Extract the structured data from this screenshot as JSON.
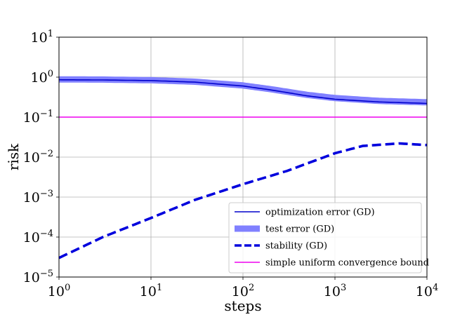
{
  "chart_data": {
    "type": "line",
    "xlabel": "steps",
    "ylabel": "risk",
    "xscale": "log",
    "yscale": "log",
    "xlim": [
      1,
      10000
    ],
    "ylim": [
      1e-05,
      10
    ],
    "grid": true,
    "legend_position": "bottom-right",
    "x_ticks": [
      {
        "base": "10",
        "exp": "0",
        "value": 1
      },
      {
        "base": "10",
        "exp": "1",
        "value": 10
      },
      {
        "base": "10",
        "exp": "2",
        "value": 100
      },
      {
        "base": "10",
        "exp": "3",
        "value": 1000
      },
      {
        "base": "10",
        "exp": "4",
        "value": 10000
      }
    ],
    "y_ticks": [
      {
        "base": "10",
        "exp": "1",
        "value": 10
      },
      {
        "base": "10",
        "exp": "0",
        "value": 1
      },
      {
        "base": "10",
        "exp": "−1",
        "value": 0.1
      },
      {
        "base": "10",
        "exp": "−2",
        "value": 0.01
      },
      {
        "base": "10",
        "exp": "−3",
        "value": 0.001
      },
      {
        "base": "10",
        "exp": "−4",
        "value": 0.0001
      },
      {
        "base": "10",
        "exp": "−5",
        "value": 1e-05
      }
    ],
    "series": [
      {
        "name": "test error (GD)",
        "color": "#8080ff",
        "style": "thick-solid",
        "x": [
          1,
          3,
          10,
          30,
          100,
          200,
          500,
          1000,
          3000,
          10000
        ],
        "y": [
          0.88,
          0.87,
          0.84,
          0.77,
          0.62,
          0.5,
          0.36,
          0.3,
          0.255,
          0.235
        ]
      },
      {
        "name": "optimization error (GD)",
        "color": "#0000cc",
        "style": "solid",
        "x": [
          1,
          3,
          10,
          30,
          100,
          200,
          500,
          1000,
          3000,
          10000
        ],
        "y": [
          0.86,
          0.85,
          0.82,
          0.75,
          0.6,
          0.48,
          0.34,
          0.28,
          0.24,
          0.22
        ]
      },
      {
        "name": "stability (GD)",
        "color": "#0000dd",
        "style": "dashed",
        "x": [
          1,
          3,
          10,
          30,
          100,
          300,
          1000,
          2000,
          5000,
          10000
        ],
        "y": [
          3e-05,
          0.0001,
          0.0003,
          0.00085,
          0.0021,
          0.0045,
          0.0125,
          0.019,
          0.022,
          0.02
        ]
      },
      {
        "name": "simple uniform convergence bound",
        "color": "#ee00ee",
        "style": "solid",
        "x": [
          1,
          10000
        ],
        "y": [
          0.1,
          0.1
        ]
      }
    ],
    "legend": [
      {
        "label": "optimization error (GD)",
        "color": "#0000cc",
        "style": "solid"
      },
      {
        "label": "test error (GD)",
        "color": "#8080ff",
        "style": "thick-solid"
      },
      {
        "label": "stability (GD)",
        "color": "#0000dd",
        "style": "dashed"
      },
      {
        "label": "simple uniform convergence bound",
        "color": "#ee00ee",
        "style": "solid"
      }
    ]
  }
}
